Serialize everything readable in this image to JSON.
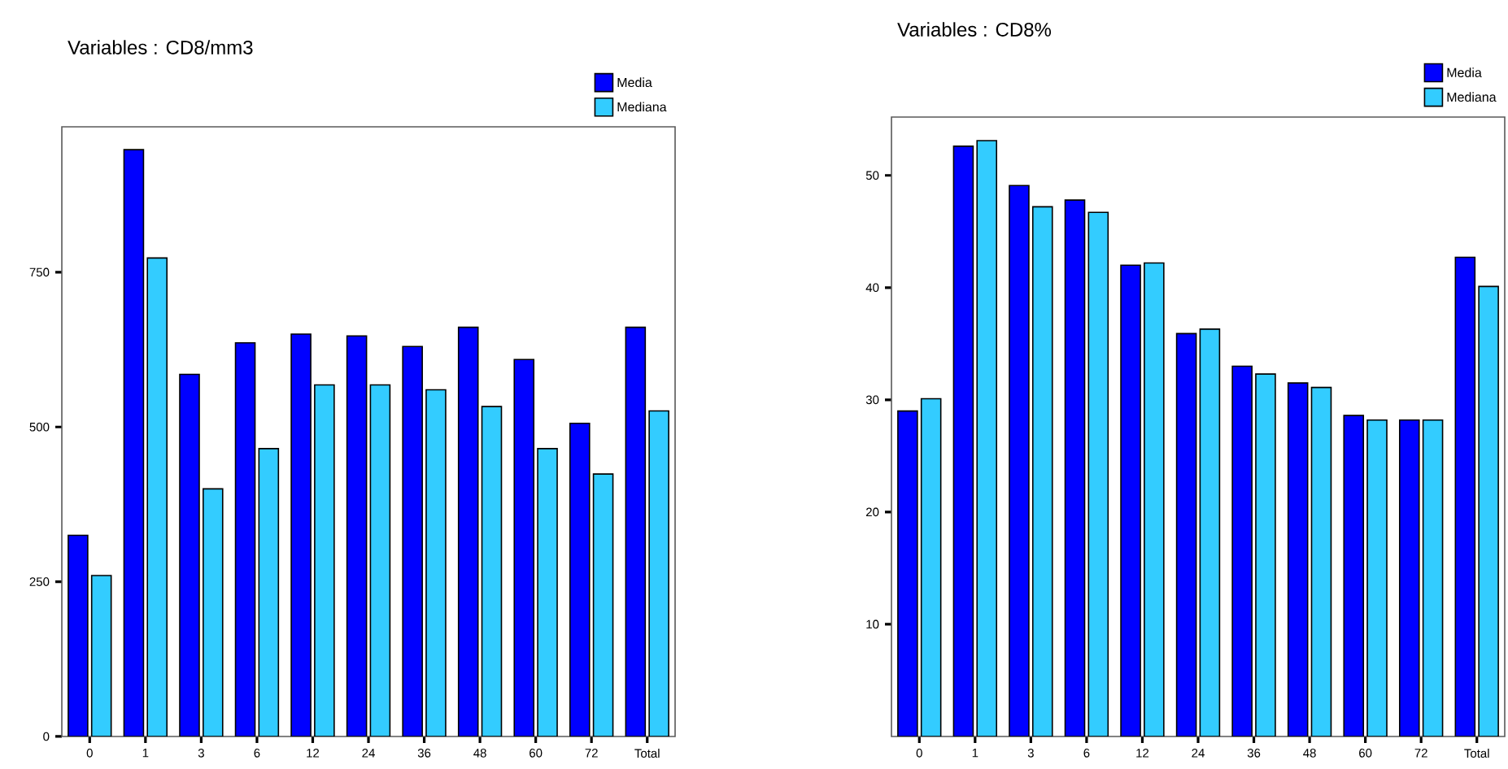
{
  "chart_data": [
    {
      "type": "bar",
      "title": "Variables : CD8/mm3",
      "categories": [
        "0",
        "1",
        "3",
        "6",
        "12",
        "24",
        "36",
        "48",
        "60",
        "72",
        "Total"
      ],
      "ylim": [
        0,
        985
      ],
      "yticks": [
        0,
        250,
        500,
        750
      ],
      "legend": "top right",
      "series": [
        {
          "name": "Media",
          "color": "#0000ff",
          "values": [
            325,
            948,
            585,
            636,
            650,
            647,
            630,
            661,
            609,
            506,
            661
          ]
        },
        {
          "name": "Mediana",
          "color": "#33ccff",
          "values": [
            260,
            773,
            400,
            465,
            568,
            568,
            560,
            533,
            465,
            424,
            526
          ]
        }
      ]
    },
    {
      "type": "bar",
      "title": "Variables : CD8%",
      "categories": [
        "0",
        "1",
        "3",
        "6",
        "12",
        "24",
        "36",
        "48",
        "60",
        "72",
        "Total"
      ],
      "ylim": [
        0,
        55.2
      ],
      "yticks": [
        10,
        20,
        30,
        40,
        50
      ],
      "legend": "top right",
      "series": [
        {
          "name": "Media",
          "color": "#0000ff",
          "values": [
            29.0,
            52.6,
            49.1,
            47.8,
            42.0,
            35.9,
            33.0,
            31.5,
            28.6,
            28.2,
            42.7
          ]
        },
        {
          "name": "Mediana",
          "color": "#33ccff",
          "values": [
            30.1,
            53.1,
            47.2,
            46.7,
            42.2,
            36.3,
            32.3,
            31.1,
            28.2,
            28.2,
            40.1
          ]
        }
      ]
    }
  ]
}
